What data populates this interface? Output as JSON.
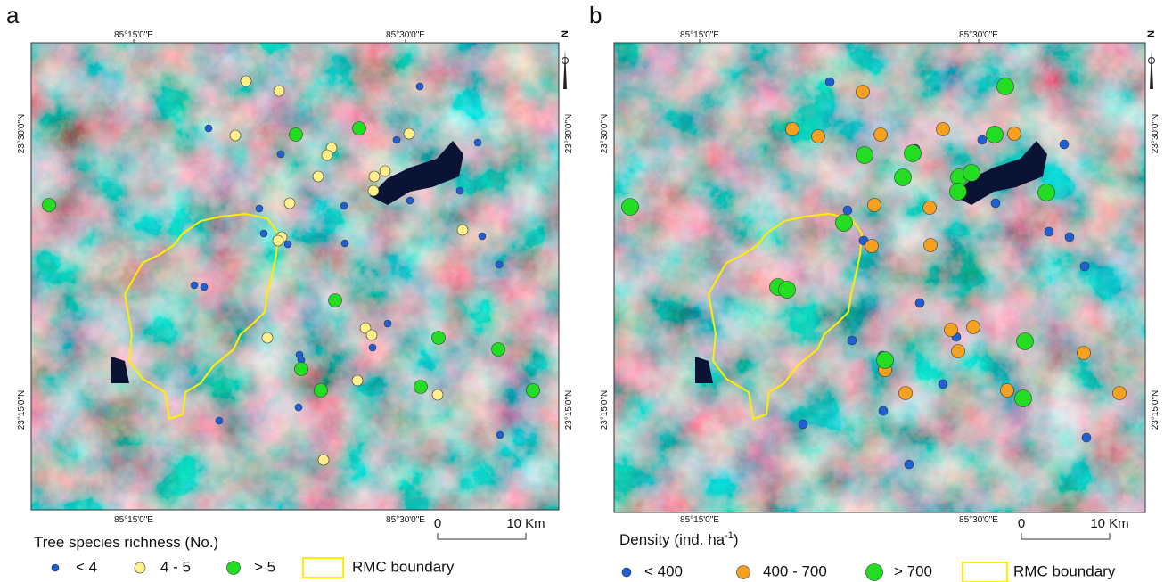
{
  "panels": [
    {
      "label": "a",
      "lon_ticks": [
        "85°15'0\"E",
        "85°30'0\"E"
      ],
      "lat_ticks": [
        "23°30'0\"N",
        "23°15'0\"N"
      ],
      "north": "N",
      "scale": {
        "start": "0",
        "end": "10 Km"
      },
      "legend": {
        "title_parts": [
          "Tree species richness (No.)"
        ],
        "items": [
          "< 4",
          "4 - 5",
          "> 5",
          "RMC boundary"
        ]
      }
    },
    {
      "label": "b",
      "lon_ticks": [
        "85°15'0\"E",
        "85°30'0\"E"
      ],
      "lat_ticks": [
        "23°30'0\"N",
        "23°15'0\"N"
      ],
      "north": "N",
      "scale": {
        "start": "0",
        "end": "10 Km"
      },
      "legend": {
        "title_parts": [
          "Density (ind. ha",
          "-1",
          ")"
        ],
        "items": [
          "< 400",
          "400 - 700",
          "> 700",
          "RMC boundary"
        ]
      }
    }
  ]
}
